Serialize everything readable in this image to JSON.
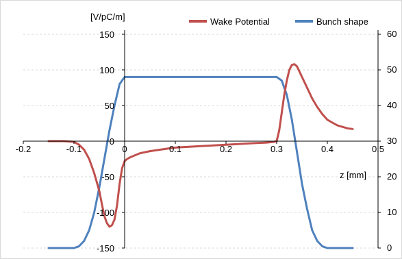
{
  "chart_data": {
    "type": "line",
    "x_axis": {
      "label": "z [mm]",
      "min": -0.2,
      "max": 0.5,
      "ticks": [
        "-0.2",
        "-0.1",
        "0",
        "0.1",
        "0.2",
        "0.3",
        "0.4",
        "0.5"
      ]
    },
    "y_axis_left": {
      "label": "[V/pC/m]",
      "min": -150,
      "max": 150,
      "ticks": [
        "150",
        "100",
        "50",
        "0",
        "-50",
        "-100",
        "-150"
      ],
      "grid": true
    },
    "y_axis_right": {
      "min": 0,
      "max": 60,
      "ticks": [
        "60",
        "50",
        "40",
        "30",
        "20",
        "10",
        "0"
      ]
    },
    "legend": {
      "position": "top-right"
    },
    "series": [
      {
        "name": "Wake Potential",
        "axis": "left",
        "color": "#c0504d",
        "points": [
          [
            -0.15,
            0
          ],
          [
            -0.12,
            0
          ],
          [
            -0.1,
            -1
          ],
          [
            -0.09,
            -5
          ],
          [
            -0.08,
            -12
          ],
          [
            -0.07,
            -25
          ],
          [
            -0.06,
            -45
          ],
          [
            -0.05,
            -70
          ],
          [
            -0.045,
            -88
          ],
          [
            -0.04,
            -105
          ],
          [
            -0.035,
            -115
          ],
          [
            -0.03,
            -120
          ],
          [
            -0.025,
            -118
          ],
          [
            -0.02,
            -110
          ],
          [
            -0.015,
            -90
          ],
          [
            -0.01,
            -60
          ],
          [
            -0.005,
            -38
          ],
          [
            0,
            -28
          ],
          [
            0.005,
            -25
          ],
          [
            0.01,
            -23
          ],
          [
            0.02,
            -20
          ],
          [
            0.03,
            -17
          ],
          [
            0.05,
            -14
          ],
          [
            0.08,
            -11
          ],
          [
            0.1,
            -9
          ],
          [
            0.15,
            -7
          ],
          [
            0.2,
            -5
          ],
          [
            0.25,
            -3
          ],
          [
            0.28,
            -2
          ],
          [
            0.295,
            -1
          ],
          [
            0.3,
            0
          ],
          [
            0.305,
            15
          ],
          [
            0.31,
            40
          ],
          [
            0.315,
            65
          ],
          [
            0.32,
            85
          ],
          [
            0.325,
            100
          ],
          [
            0.33,
            107
          ],
          [
            0.335,
            108
          ],
          [
            0.34,
            105
          ],
          [
            0.35,
            90
          ],
          [
            0.36,
            75
          ],
          [
            0.37,
            60
          ],
          [
            0.38,
            48
          ],
          [
            0.39,
            38
          ],
          [
            0.4,
            30
          ],
          [
            0.41,
            26
          ],
          [
            0.42,
            22
          ],
          [
            0.43,
            20
          ],
          [
            0.44,
            18
          ],
          [
            0.45,
            17
          ]
        ]
      },
      {
        "name": "Bunch shape",
        "axis": "right",
        "color": "#4f81bd",
        "points": [
          [
            -0.15,
            0
          ],
          [
            -0.1,
            0
          ],
          [
            -0.09,
            0.5
          ],
          [
            -0.08,
            2
          ],
          [
            -0.07,
            5
          ],
          [
            -0.06,
            10
          ],
          [
            -0.05,
            17
          ],
          [
            -0.04,
            25
          ],
          [
            -0.03,
            33
          ],
          [
            -0.02,
            40
          ],
          [
            -0.01,
            46
          ],
          [
            0,
            48
          ],
          [
            0.05,
            48
          ],
          [
            0.1,
            48
          ],
          [
            0.2,
            48
          ],
          [
            0.3,
            48
          ],
          [
            0.31,
            47
          ],
          [
            0.32,
            43
          ],
          [
            0.33,
            36
          ],
          [
            0.34,
            27
          ],
          [
            0.35,
            18
          ],
          [
            0.36,
            11
          ],
          [
            0.37,
            5
          ],
          [
            0.38,
            2
          ],
          [
            0.39,
            0.5
          ],
          [
            0.4,
            0
          ],
          [
            0.45,
            0
          ]
        ]
      }
    ]
  }
}
